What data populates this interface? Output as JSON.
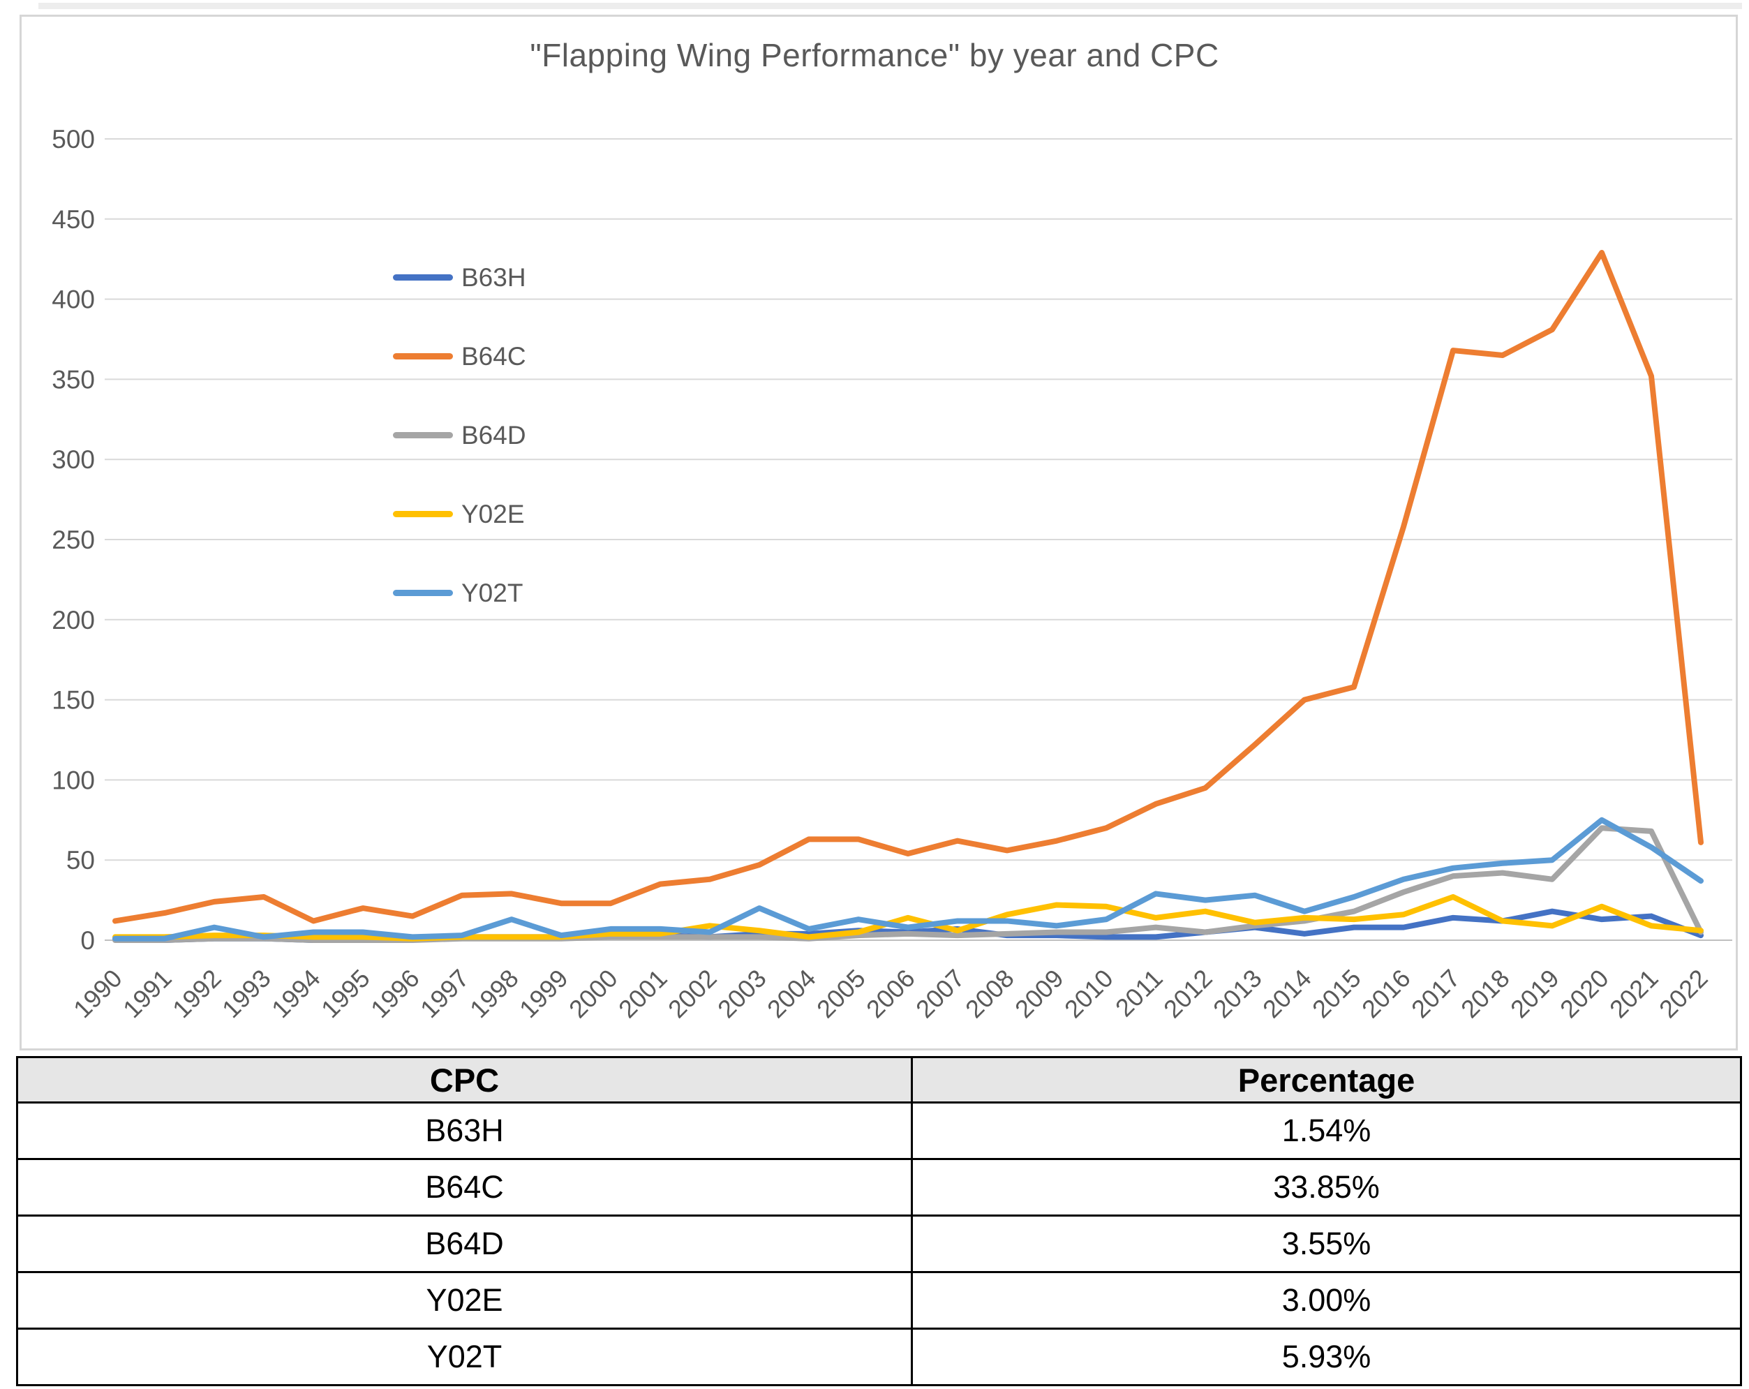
{
  "title": "\"Flapping Wing Performance\" by year and CPC",
  "colors": {
    "axis_text": "#595959",
    "gridline": "#d9d9d9",
    "zero_line": "#bfbfbf",
    "table_header_bg": "#e6e6e6",
    "table_border": "#000000"
  },
  "chart_data": {
    "type": "line",
    "title": "\"Flapping Wing Performance\" by year and CPC",
    "xlabel": "",
    "ylabel": "",
    "ylim": [
      0,
      500
    ],
    "y_ticks": [
      0,
      50,
      100,
      150,
      200,
      250,
      300,
      350,
      400,
      450,
      500
    ],
    "grid": true,
    "legend_position": "inside-upper-left",
    "x": [
      1990,
      1991,
      1992,
      1993,
      1994,
      1995,
      1996,
      1997,
      1998,
      1999,
      2000,
      2001,
      2002,
      2003,
      2004,
      2005,
      2006,
      2007,
      2008,
      2009,
      2010,
      2011,
      2012,
      2013,
      2014,
      2015,
      2016,
      2017,
      2018,
      2019,
      2020,
      2021,
      2022
    ],
    "series": [
      {
        "name": "B63H",
        "color": "#4472C4",
        "values": [
          1,
          0,
          1,
          1,
          0,
          1,
          1,
          2,
          2,
          2,
          5,
          3,
          2,
          4,
          4,
          6,
          5,
          7,
          3,
          3,
          2,
          2,
          5,
          8,
          4,
          8,
          8,
          14,
          12,
          18,
          13,
          15,
          3
        ]
      },
      {
        "name": "B64C",
        "color": "#ED7D31",
        "values": [
          12,
          17,
          24,
          27,
          12,
          20,
          15,
          28,
          29,
          23,
          23,
          35,
          38,
          47,
          63,
          63,
          54,
          62,
          56,
          62,
          70,
          85,
          95,
          122,
          150,
          158,
          258,
          368,
          365,
          381,
          429,
          352,
          61
        ]
      },
      {
        "name": "B64D",
        "color": "#A5A5A5",
        "values": [
          0,
          0,
          1,
          1,
          0,
          0,
          0,
          1,
          1,
          1,
          2,
          2,
          2,
          2,
          1,
          3,
          4,
          3,
          4,
          5,
          5,
          8,
          5,
          9,
          12,
          18,
          30,
          40,
          42,
          38,
          70,
          68,
          5
        ]
      },
      {
        "name": "Y02E",
        "color": "#FFC000",
        "values": [
          2,
          2,
          3,
          3,
          2,
          2,
          1,
          2,
          2,
          2,
          4,
          4,
          9,
          6,
          2,
          5,
          14,
          6,
          16,
          22,
          21,
          14,
          18,
          11,
          14,
          13,
          16,
          27,
          12,
          9,
          21,
          9,
          6
        ]
      },
      {
        "name": "Y02T",
        "color": "#5B9BD5",
        "values": [
          1,
          1,
          8,
          2,
          5,
          5,
          2,
          3,
          13,
          3,
          7,
          7,
          5,
          20,
          7,
          13,
          8,
          12,
          12,
          9,
          13,
          29,
          25,
          28,
          18,
          27,
          38,
          45,
          48,
          50,
          75,
          58,
          37
        ]
      }
    ]
  },
  "table": {
    "headers": [
      "CPC",
      "Percentage"
    ],
    "rows": [
      {
        "cpc": "B63H",
        "percentage": "1.54%"
      },
      {
        "cpc": "B64C",
        "percentage": "33.85%"
      },
      {
        "cpc": "B64D",
        "percentage": "3.55%"
      },
      {
        "cpc": "Y02E",
        "percentage": "3.00%"
      },
      {
        "cpc": "Y02T",
        "percentage": "5.93%"
      }
    ]
  }
}
